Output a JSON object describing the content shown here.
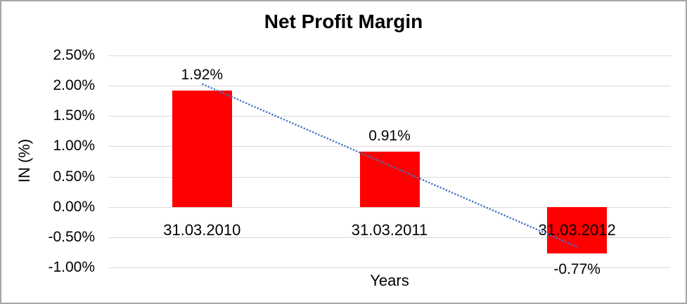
{
  "chart_data": {
    "type": "bar",
    "title": "Net Profit Margin",
    "xlabel": "Years",
    "ylabel": "IN (%)",
    "categories": [
      "31.03.2010",
      "31.03.2011",
      "31.03.2012"
    ],
    "values": [
      1.92,
      0.91,
      -0.77
    ],
    "value_labels": [
      "1.92%",
      "0.91%",
      "-0.77%"
    ],
    "y_ticks": [
      2.5,
      2.0,
      1.5,
      1.0,
      0.5,
      0.0,
      -0.5,
      -1.0
    ],
    "y_tick_labels": [
      "2.50%",
      "2.00%",
      "1.50%",
      "1.00%",
      "0.50%",
      "0.00%",
      "-0.50%",
      "-1.00%"
    ],
    "ylim": [
      -1.0,
      2.5
    ],
    "grid": true,
    "legend": "none",
    "bar_color": "#FF0000",
    "gridline_color": "#D9D9D9",
    "trendline": {
      "type": "linear",
      "style": "dotted",
      "color": "#4472C4",
      "start_category_index": 0,
      "start_value": 2.03,
      "end_category_index": 2,
      "end_value": -0.66
    }
  }
}
